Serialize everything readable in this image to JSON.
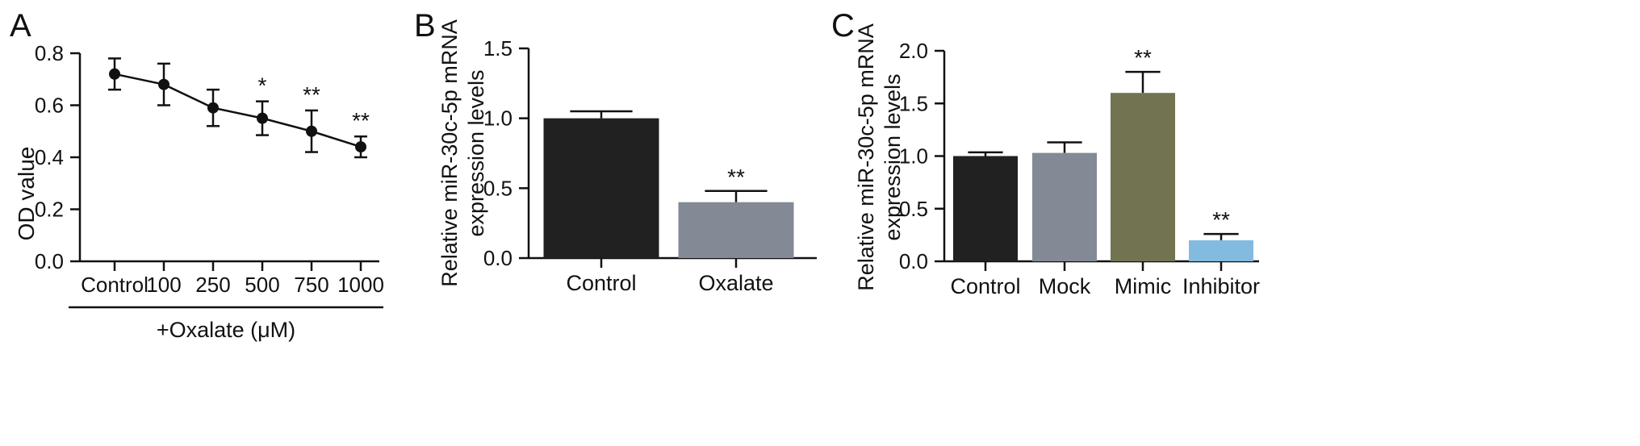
{
  "chart_data": [
    {
      "panel_label": "A",
      "type": "line",
      "categories": [
        "Control",
        "100",
        "250",
        "500",
        "750",
        "1000"
      ],
      "values": [
        0.72,
        0.68,
        0.59,
        0.55,
        0.5,
        0.44
      ],
      "errors": [
        0.06,
        0.08,
        0.07,
        0.065,
        0.08,
        0.04
      ],
      "significance": [
        "",
        "",
        "",
        "*",
        "**",
        "**"
      ],
      "ylabel": "OD value",
      "group_label": "+Oxalate (μM)",
      "ylim": [
        0,
        0.8
      ],
      "yticks": [
        "0.0",
        "0.2",
        "0.4",
        "0.6",
        "0.8"
      ],
      "grid": false
    },
    {
      "panel_label": "B",
      "type": "bar",
      "categories": [
        "Control",
        "Oxalate"
      ],
      "values": [
        1.0,
        0.4
      ],
      "errors": [
        0.05,
        0.08
      ],
      "significance": [
        "",
        "**"
      ],
      "colors": [
        "#212121",
        "#838995"
      ],
      "ylabel_lines": [
        "Relative miR-30c-5p mRNA",
        "expression levels"
      ],
      "ylim": [
        0,
        1.5
      ],
      "yticks": [
        "0.0",
        "0.5",
        "1.0",
        "1.5"
      ],
      "grid": false
    },
    {
      "panel_label": "C",
      "type": "bar",
      "categories": [
        "Control",
        "Mock",
        "Mimic",
        "Inhibitor"
      ],
      "values": [
        1.0,
        1.03,
        1.6,
        0.2
      ],
      "errors": [
        0.035,
        0.1,
        0.2,
        0.06
      ],
      "significance": [
        "",
        "",
        "**",
        "**"
      ],
      "colors": [
        "#212121",
        "#838995",
        "#727451",
        "#82bbdf"
      ],
      "ylabel_lines": [
        "Relative miR-30c-5p mRNA",
        "expression levels"
      ],
      "ylim": [
        0,
        2.0
      ],
      "yticks": [
        "0.0",
        "0.5",
        "1.0",
        "1.5",
        "2.0"
      ],
      "grid": false
    }
  ]
}
